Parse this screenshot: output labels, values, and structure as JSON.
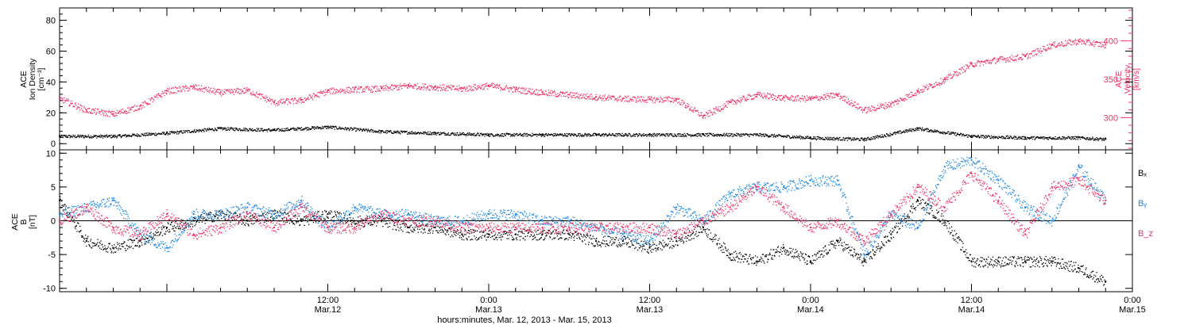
{
  "colors": {
    "black": "#000000",
    "pink": "#ee3366",
    "blue": "#1e88e5"
  },
  "chart_data": [
    {
      "type": "scatter",
      "panel": "top",
      "ylabel_left": [
        "ACE",
        "Ion Density",
        "[cm⁻³]"
      ],
      "ylabel_right": [
        "ACE",
        "Velocity",
        "[km/s]"
      ],
      "ylim_left": [
        -4,
        88
      ],
      "yticks_left": [
        0,
        20,
        40,
        60,
        80
      ],
      "ylim_right": [
        258,
        443
      ],
      "yticks_right": [
        300,
        350,
        400
      ],
      "xlim": [
        0,
        80
      ],
      "x_units": "hours since 2013-03-11 16:00",
      "series": [
        {
          "name": "Ion Density",
          "axis": "left",
          "color": "black",
          "x": [
            0,
            4,
            8,
            12,
            16,
            20,
            24,
            28,
            32,
            36,
            40,
            44,
            48,
            52,
            56,
            60,
            64,
            68,
            72,
            76,
            78
          ],
          "values": [
            5,
            5,
            7,
            10,
            9,
            11,
            8,
            7,
            6,
            6,
            6,
            6,
            6,
            6,
            4,
            3,
            10,
            5,
            4,
            4,
            3
          ]
        },
        {
          "name": "Velocity",
          "axis": "right",
          "color": "pink",
          "x": [
            0,
            2,
            4,
            6,
            8,
            10,
            12,
            14,
            16,
            18,
            20,
            22,
            24,
            26,
            28,
            30,
            32,
            34,
            36,
            38,
            40,
            42,
            44,
            46,
            48,
            50,
            52,
            54,
            56,
            58,
            60,
            62,
            64,
            66,
            68,
            70,
            72,
            74,
            76,
            78
          ],
          "values": [
            325,
            310,
            305,
            315,
            335,
            340,
            333,
            336,
            320,
            323,
            335,
            337,
            338,
            342,
            340,
            338,
            342,
            337,
            333,
            330,
            327,
            325,
            324,
            324,
            302,
            320,
            330,
            326,
            325,
            330,
            310,
            318,
            335,
            350,
            370,
            376,
            380,
            395,
            400,
            395
          ]
        }
      ]
    },
    {
      "type": "scatter",
      "panel": "bottom",
      "ylabel": [
        "ACE",
        "B",
        "[nT]"
      ],
      "ylim": [
        -10.5,
        10.5
      ],
      "yticks": [
        -10,
        -5,
        0,
        5,
        10
      ],
      "xlim": [
        0,
        80
      ],
      "x_units": "hours since 2013-03-11 16:00",
      "legend": [
        "Bₓ",
        "Bᵧ",
        "B_z"
      ],
      "series": [
        {
          "name": "Bₓ",
          "color": "black",
          "x": [
            0,
            2,
            4,
            6,
            8,
            10,
            12,
            14,
            16,
            18,
            20,
            22,
            24,
            26,
            28,
            30,
            32,
            34,
            36,
            38,
            40,
            42,
            44,
            46,
            48,
            50,
            52,
            54,
            56,
            58,
            60,
            62,
            64,
            66,
            68,
            70,
            72,
            74,
            76,
            78
          ],
          "values": [
            3,
            -3,
            -4,
            -3,
            -1,
            0,
            1,
            0,
            1,
            0,
            1,
            0,
            0,
            -1,
            -1,
            -2,
            -2,
            -2,
            -2,
            -2,
            -3,
            -3,
            -4,
            -3,
            -1,
            -5,
            -6,
            -4,
            -6,
            -3,
            -6,
            -2,
            3,
            0,
            -6,
            -6,
            -6,
            -6,
            -7,
            -9
          ]
        },
        {
          "name": "Bᵧ",
          "color": "blue",
          "x": [
            0,
            2,
            4,
            6,
            8,
            10,
            12,
            14,
            16,
            18,
            20,
            22,
            24,
            26,
            28,
            30,
            32,
            34,
            36,
            38,
            40,
            42,
            44,
            46,
            48,
            50,
            52,
            54,
            56,
            58,
            60,
            62,
            64,
            66,
            68,
            70,
            72,
            74,
            76,
            78
          ],
          "values": [
            1,
            2,
            3,
            -2,
            -4,
            1,
            1,
            2,
            1,
            3,
            -1,
            2,
            1,
            1,
            0,
            0,
            1,
            1,
            0,
            0,
            -1,
            -2,
            -3,
            2,
            0,
            4,
            5,
            5,
            6,
            6,
            -5,
            1,
            -1,
            8,
            9,
            6,
            2,
            0,
            8,
            3
          ]
        },
        {
          "name": "B_z",
          "color": "pink",
          "x": [
            0,
            2,
            4,
            6,
            8,
            10,
            12,
            14,
            16,
            18,
            20,
            22,
            24,
            26,
            28,
            30,
            32,
            34,
            36,
            38,
            40,
            42,
            44,
            46,
            48,
            50,
            52,
            54,
            56,
            58,
            60,
            62,
            64,
            66,
            68,
            70,
            72,
            74,
            76,
            78
          ],
          "values": [
            0,
            2,
            -1,
            -2,
            1,
            -2,
            -1,
            1,
            -1,
            2,
            -1,
            -1,
            1,
            0,
            0,
            -1,
            -1,
            -1,
            -1,
            -1,
            -1,
            -1,
            -1,
            -2,
            0,
            2,
            5,
            2,
            -1,
            0,
            -3,
            1,
            5,
            2,
            7,
            3,
            -2,
            5,
            6,
            3
          ]
        }
      ]
    }
  ],
  "xaxis": {
    "ticks": [
      {
        "x": 20,
        "line1": "12:00",
        "line2": "Mar.12"
      },
      {
        "x": 32,
        "line1": "0:00",
        "line2": "Mar.13"
      },
      {
        "x": 44,
        "line1": "12:00",
        "line2": "Mar.13"
      },
      {
        "x": 56,
        "line1": "0:00",
        "line2": "Mar.14"
      },
      {
        "x": 68,
        "line1": "12:00",
        "line2": "Mar.14"
      },
      {
        "x": 80,
        "line1": "0:00",
        "line2": "Mar.15"
      }
    ],
    "minor_step": 2,
    "label": "hours:minutes, Mar. 12, 2013 - Mar. 15, 2013"
  }
}
